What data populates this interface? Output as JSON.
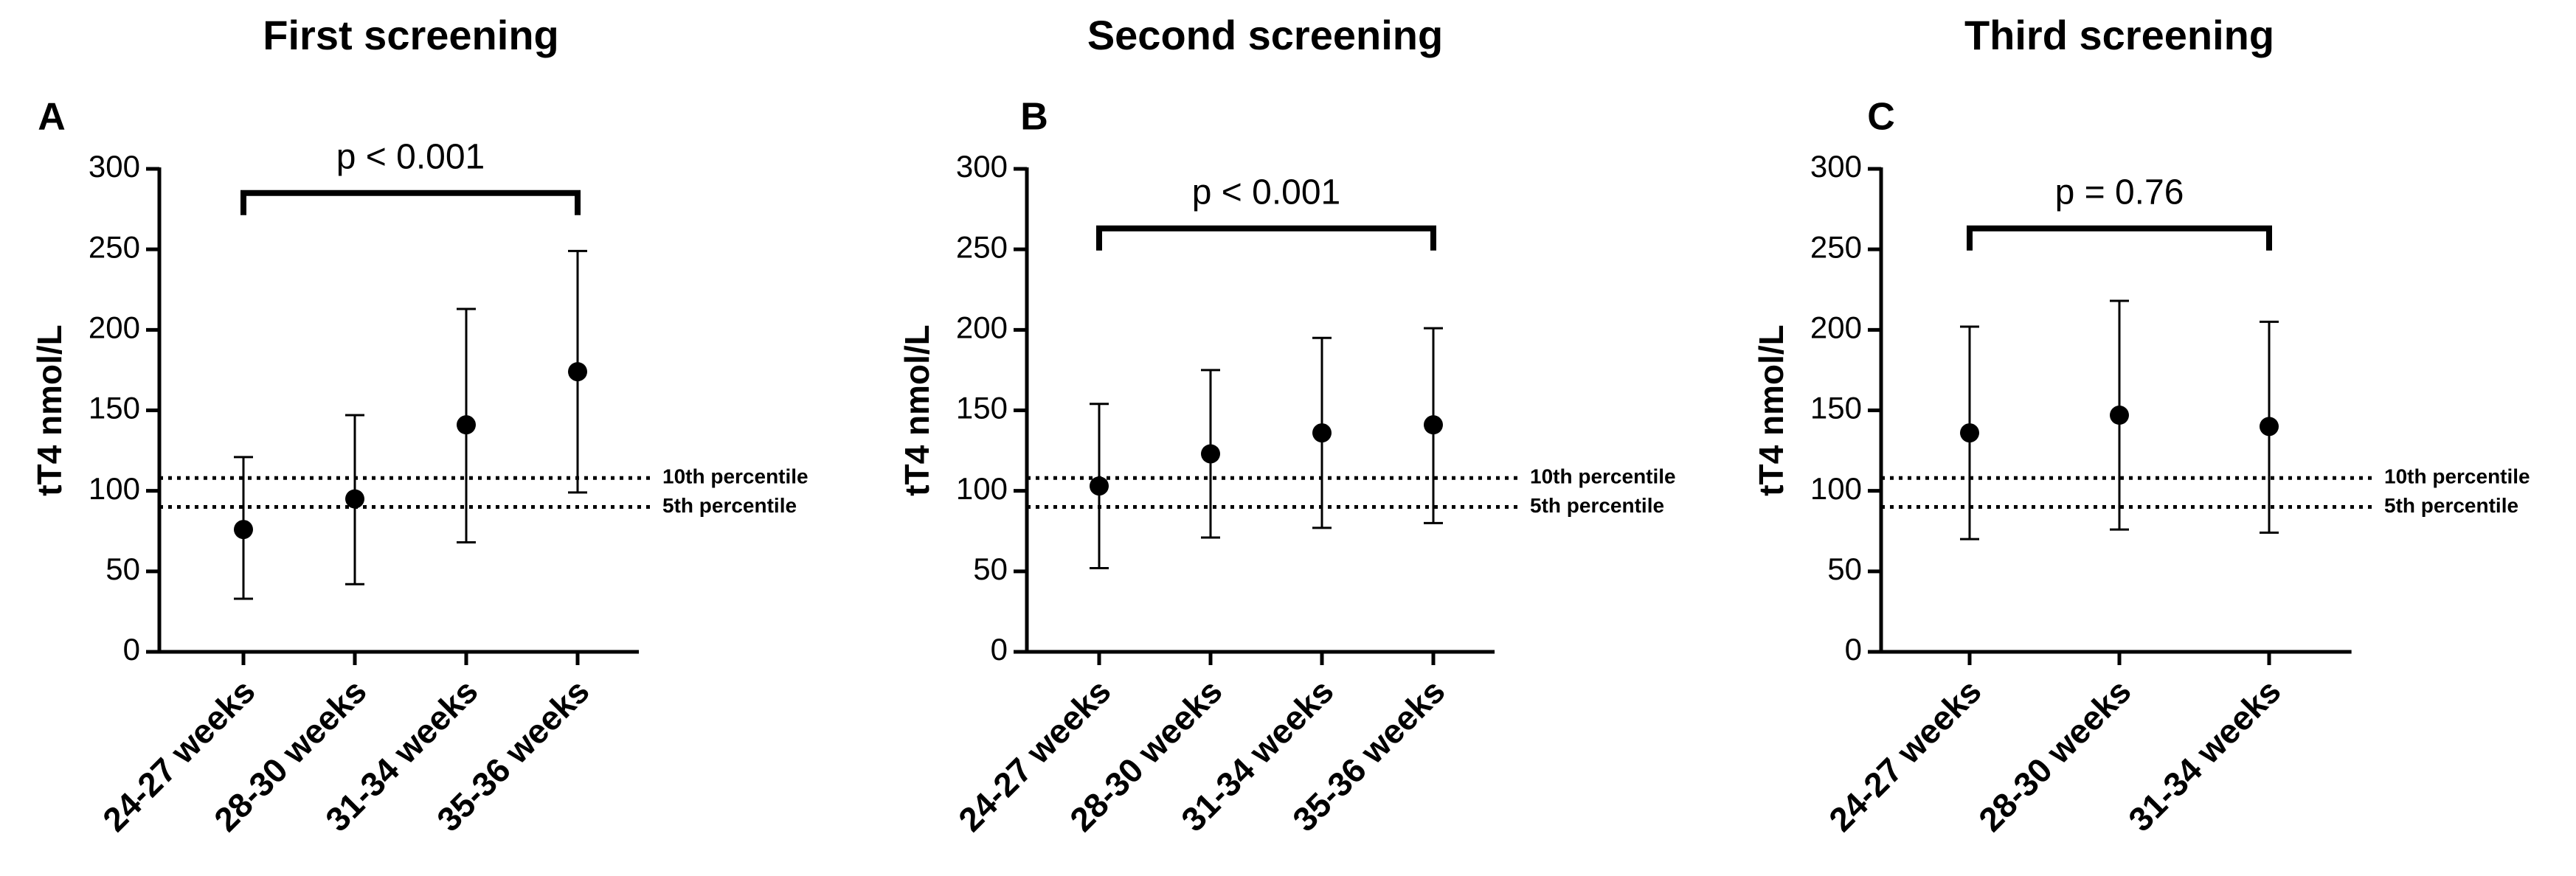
{
  "chart_data": [
    {
      "type": "errorbar",
      "title": "First screening",
      "panel": "A",
      "y_label": "tT4 nmol/L",
      "categories": [
        "24-27 weeks",
        "28-30 weeks",
        "31-34 weeks",
        "35-36 weeks"
      ],
      "values": [
        76,
        95,
        141,
        174
      ],
      "error_low": [
        33,
        42,
        68,
        99
      ],
      "error_high": [
        121,
        147,
        213,
        249
      ],
      "color": "#000000",
      "ylim": [
        0,
        300
      ],
      "yticks": [
        0,
        50,
        100,
        150,
        200,
        250,
        300
      ],
      "reference_lines": [
        {
          "label": "10th percentile",
          "value": 108
        },
        {
          "label": "5th percentile",
          "value": 90
        }
      ],
      "annotation": {
        "text": "p < 0.001",
        "y": 285
      }
    },
    {
      "type": "errorbar",
      "title": "Second screening",
      "panel": "B",
      "y_label": "tT4 nmol/L",
      "categories": [
        "24-27 weeks",
        "28-30 weeks",
        "31-34 weeks",
        "35-36 weeks"
      ],
      "values": [
        103,
        123,
        136,
        141
      ],
      "error_low": [
        52,
        71,
        77,
        80
      ],
      "error_high": [
        154,
        175,
        195,
        201
      ],
      "color": "#000000",
      "ylim": [
        0,
        300
      ],
      "yticks": [
        0,
        50,
        100,
        150,
        200,
        250,
        300
      ],
      "reference_lines": [
        {
          "label": "10th percentile",
          "value": 108
        },
        {
          "label": "5th percentile",
          "value": 90
        }
      ],
      "annotation": {
        "text": "p < 0.001",
        "y": 263
      }
    },
    {
      "type": "errorbar",
      "title": "Third screening",
      "panel": "C",
      "y_label": "tT4 nmol/L",
      "categories": [
        "24-27 weeks",
        "28-30 weeks",
        "31-34 weeks"
      ],
      "values": [
        136,
        147,
        140
      ],
      "error_low": [
        70,
        76,
        74
      ],
      "error_high": [
        202,
        218,
        205
      ],
      "color": "#000000",
      "ylim": [
        0,
        300
      ],
      "yticks": [
        0,
        50,
        100,
        150,
        200,
        250,
        300
      ],
      "reference_lines": [
        {
          "label": "10th percentile",
          "value": 108
        },
        {
          "label": "5th percentile",
          "value": 90
        }
      ],
      "annotation": {
        "text": "p = 0.76",
        "y": 263
      }
    }
  ]
}
